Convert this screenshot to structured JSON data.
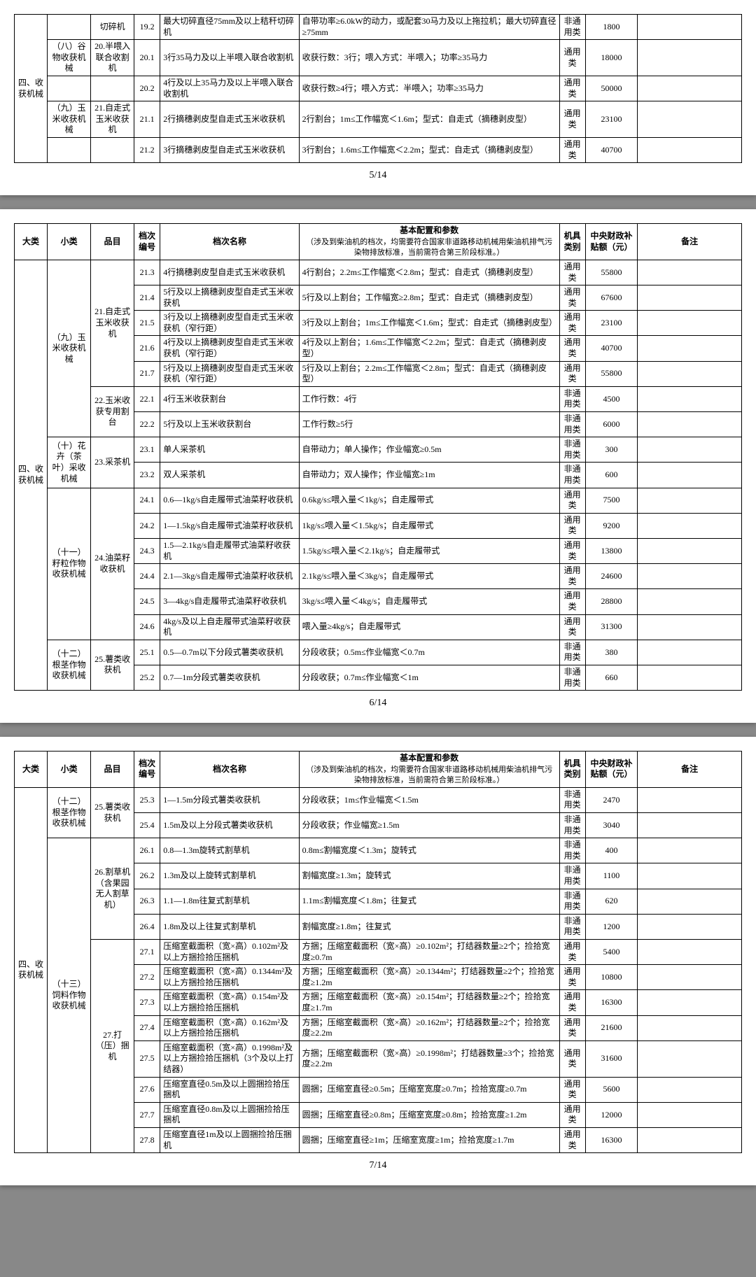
{
  "headers": {
    "dalei": "大类",
    "xiaolei": "小类",
    "pinmu": "品目",
    "danghao": "档次编号",
    "dangming": "档次名称",
    "canshu_title": "基本配置和参数",
    "canshu_sub": "（涉及到柴油机的档次，均需要符合国家非道路移动机械用柴油机排气污染物排放标准，当前需符合第三阶段标准。）",
    "leibie": "机具类别",
    "butie": "中央财政补贴额（元）",
    "beizhu": "备注"
  },
  "page5": {
    "num": "5/14",
    "dalei": "四、收获机械",
    "rows": [
      {
        "xl": "",
        "pm": "切碎机",
        "dh": "19.2",
        "dm": "最大切碎直径75mm及以上秸秆切碎机",
        "cs": "自带功率≥6.0kW的动力，或配套30马力及以上拖拉机；最大切碎直径≥75mm",
        "lb": "非通用类",
        "bt": "1800",
        "bz": ""
      },
      {
        "xl": "（八）谷物收获机械",
        "pm": "20.半喂入联合收割机",
        "dh": "20.1",
        "dm": "3行35马力及以上半喂入联合收割机",
        "cs": "收获行数：3行；喂入方式：半喂入；功率≥35马力",
        "lb": "通用类",
        "bt": "18000",
        "bz": ""
      },
      {
        "xl": "",
        "pm": "",
        "dh": "20.2",
        "dm": "4行及以上35马力及以上半喂入联合收割机",
        "cs": "收获行数≥4行；喂入方式：半喂入；功率≥35马力",
        "lb": "通用类",
        "bt": "50000",
        "bz": ""
      },
      {
        "xl": "（九）玉米收获机械",
        "pm": "21.自走式玉米收获机",
        "dh": "21.1",
        "dm": "2行摘穗剥皮型自走式玉米收获机",
        "cs": "2行割台；1m≤工作幅宽＜1.6m；型式：自走式（摘穗剥皮型）",
        "lb": "通用类",
        "bt": "23100",
        "bz": ""
      },
      {
        "xl": "",
        "pm": "",
        "dh": "21.2",
        "dm": "3行摘穗剥皮型自走式玉米收获机",
        "cs": "3行割台；1.6m≤工作幅宽＜2.2m；型式：自走式（摘穗剥皮型）",
        "lb": "通用类",
        "bt": "40700",
        "bz": ""
      }
    ]
  },
  "page6": {
    "num": "6/14",
    "dalei": "四、收获机械",
    "groups": [
      {
        "xl": "（九）玉米收获机械",
        "items": [
          {
            "pm": "21.自走式玉米收获机",
            "rows": [
              {
                "dh": "21.3",
                "dm": "4行摘穗剥皮型自走式玉米收获机",
                "cs": "4行割台；2.2m≤工作幅宽＜2.8m；型式：自走式（摘穗剥皮型）",
                "lb": "通用类",
                "bt": "55800"
              },
              {
                "dh": "21.4",
                "dm": "5行及以上摘穗剥皮型自走式玉米收获机",
                "cs": "5行及以上割台；工作幅宽≥2.8m；型式：自走式（摘穗剥皮型）",
                "lb": "通用类",
                "bt": "67600"
              },
              {
                "dh": "21.5",
                "dm": "3行及以上摘穗剥皮型自走式玉米收获机（窄行距）",
                "cs": "3行及以上割台；1m≤工作幅宽＜1.6m；型式：自走式（摘穗剥皮型）",
                "lb": "通用类",
                "bt": "23100"
              },
              {
                "dh": "21.6",
                "dm": "4行及以上摘穗剥皮型自走式玉米收获机（窄行距）",
                "cs": "4行及以上割台；1.6m≤工作幅宽＜2.2m；型式：自走式（摘穗剥皮型）",
                "lb": "通用类",
                "bt": "40700"
              },
              {
                "dh": "21.7",
                "dm": "5行及以上摘穗剥皮型自走式玉米收获机（窄行距）",
                "cs": "5行及以上割台；2.2m≤工作幅宽＜2.8m；型式：自走式（摘穗剥皮型）",
                "lb": "通用类",
                "bt": "55800"
              }
            ]
          },
          {
            "pm": "22.玉米收获专用割台",
            "rows": [
              {
                "dh": "22.1",
                "dm": "4行玉米收获割台",
                "cs": "工作行数：4行",
                "lb": "非通用类",
                "bt": "4500"
              },
              {
                "dh": "22.2",
                "dm": "5行及以上玉米收获割台",
                "cs": "工作行数≥5行",
                "lb": "非通用类",
                "bt": "6000"
              }
            ]
          }
        ]
      },
      {
        "xl": "（十）花卉（茶叶）采收机械",
        "items": [
          {
            "pm": "23.采茶机",
            "rows": [
              {
                "dh": "23.1",
                "dm": "单人采茶机",
                "cs": "自带动力；单人操作；作业幅宽≥0.5m",
                "lb": "非通用类",
                "bt": "300"
              },
              {
                "dh": "23.2",
                "dm": "双人采茶机",
                "cs": "自带动力；双人操作；作业幅宽≥1m",
                "lb": "非通用类",
                "bt": "600"
              }
            ]
          }
        ]
      },
      {
        "xl": "（十一）籽粒作物收获机械",
        "items": [
          {
            "pm": "24.油菜籽收获机",
            "rows": [
              {
                "dh": "24.1",
                "dm": "0.6—1kg/s自走履带式油菜籽收获机",
                "cs": "0.6kg/s≤喂入量＜1kg/s；自走履带式",
                "lb": "通用类",
                "bt": "7500"
              },
              {
                "dh": "24.2",
                "dm": "1—1.5kg/s自走履带式油菜籽收获机",
                "cs": "1kg/s≤喂入量＜1.5kg/s；自走履带式",
                "lb": "通用类",
                "bt": "9200"
              },
              {
                "dh": "24.3",
                "dm": "1.5—2.1kg/s自走履带式油菜籽收获机",
                "cs": "1.5kg/s≤喂入量＜2.1kg/s；自走履带式",
                "lb": "通用类",
                "bt": "13800"
              },
              {
                "dh": "24.4",
                "dm": "2.1—3kg/s自走履带式油菜籽收获机",
                "cs": "2.1kg/s≤喂入量＜3kg/s；自走履带式",
                "lb": "通用类",
                "bt": "24600"
              },
              {
                "dh": "24.5",
                "dm": "3—4kg/s自走履带式油菜籽收获机",
                "cs": "3kg/s≤喂入量＜4kg/s；自走履带式",
                "lb": "通用类",
                "bt": "28800"
              },
              {
                "dh": "24.6",
                "dm": "4kg/s及以上自走履带式油菜籽收获机",
                "cs": "喂入量≥4kg/s；自走履带式",
                "lb": "通用类",
                "bt": "31300"
              }
            ]
          }
        ]
      },
      {
        "xl": "（十二）根茎作物收获机械",
        "items": [
          {
            "pm": "25.薯类收获机",
            "rows": [
              {
                "dh": "25.1",
                "dm": "0.5—0.7m以下分段式薯类收获机",
                "cs": "分段收获；0.5m≤作业幅宽＜0.7m",
                "lb": "非通用类",
                "bt": "380"
              },
              {
                "dh": "25.2",
                "dm": "0.7—1m分段式薯类收获机",
                "cs": "分段收获；0.7m≤作业幅宽＜1m",
                "lb": "非通用类",
                "bt": "660"
              }
            ]
          }
        ]
      }
    ]
  },
  "page7": {
    "num": "7/14",
    "dalei": "四、收获机械",
    "groups": [
      {
        "xl": "（十二）根茎作物收获机械",
        "items": [
          {
            "pm": "25.薯类收获机",
            "rows": [
              {
                "dh": "25.3",
                "dm": "1—1.5m分段式薯类收获机",
                "cs": "分段收获；1m≤作业幅宽＜1.5m",
                "lb": "非通用类",
                "bt": "2470"
              },
              {
                "dh": "25.4",
                "dm": "1.5m及以上分段式薯类收获机",
                "cs": "分段收获；作业幅宽≥1.5m",
                "lb": "非通用类",
                "bt": "3040"
              }
            ]
          }
        ]
      },
      {
        "xl": "（十三）饲料作物收获机械",
        "items": [
          {
            "pm": "26.割草机（含果园无人割草机）",
            "rows": [
              {
                "dh": "26.1",
                "dm": "0.8—1.3m旋转式割草机",
                "cs": "0.8m≤割幅宽度＜1.3m；旋转式",
                "lb": "非通用类",
                "bt": "400"
              },
              {
                "dh": "26.2",
                "dm": "1.3m及以上旋转式割草机",
                "cs": "割幅宽度≥1.3m；旋转式",
                "lb": "非通用类",
                "bt": "1100"
              },
              {
                "dh": "26.3",
                "dm": "1.1—1.8m往复式割草机",
                "cs": "1.1m≤割幅宽度＜1.8m；往复式",
                "lb": "非通用类",
                "bt": "620"
              },
              {
                "dh": "26.4",
                "dm": "1.8m及以上往复式割草机",
                "cs": "割幅宽度≥1.8m；往复式",
                "lb": "非通用类",
                "bt": "1200"
              }
            ]
          },
          {
            "pm": "27.打（压）捆机",
            "rows": [
              {
                "dh": "27.1",
                "dm": "压缩室截面积（宽×高）0.102m²及以上方捆捡拾压捆机",
                "cs": "方捆；压缩室截面积（宽×高）≥0.102m²；打结器数量≥2个；捡拾宽度≥0.7m",
                "lb": "通用类",
                "bt": "5400"
              },
              {
                "dh": "27.2",
                "dm": "压缩室截面积（宽×高）0.1344m²及以上方捆捡拾压捆机",
                "cs": "方捆；压缩室截面积（宽×高）≥0.1344m²；打结器数量≥2个；捡拾宽度≥1.2m",
                "lb": "通用类",
                "bt": "10800"
              },
              {
                "dh": "27.3",
                "dm": "压缩室截面积（宽×高）0.154m²及以上方捆捡拾压捆机",
                "cs": "方捆；压缩室截面积（宽×高）≥0.154m²；打结器数量≥2个；捡拾宽度≥1.7m",
                "lb": "通用类",
                "bt": "16300"
              },
              {
                "dh": "27.4",
                "dm": "压缩室截面积（宽×高）0.162m²及以上方捆捡拾压捆机",
                "cs": "方捆；压缩室截面积（宽×高）≥0.162m²；打结器数量≥2个；捡拾宽度≥2.2m",
                "lb": "通用类",
                "bt": "21600"
              },
              {
                "dh": "27.5",
                "dm": "压缩室截面积（宽×高）0.1998m²及以上方捆捡拾压捆机（3个及以上打结器）",
                "cs": "方捆；压缩室截面积（宽×高）≥0.1998m²；打结器数量≥3个；捡拾宽度≥2.2m",
                "lb": "通用类",
                "bt": "31600"
              },
              {
                "dh": "27.6",
                "dm": "压缩室直径0.5m及以上圆捆捡拾压捆机",
                "cs": "圆捆；压缩室直径≥0.5m；压缩室宽度≥0.7m；捡拾宽度≥0.7m",
                "lb": "通用类",
                "bt": "5600"
              },
              {
                "dh": "27.7",
                "dm": "压缩室直径0.8m及以上圆捆捡拾压捆机",
                "cs": "圆捆；压缩室直径≥0.8m；压缩室宽度≥0.8m；捡拾宽度≥1.2m",
                "lb": "通用类",
                "bt": "12000"
              },
              {
                "dh": "27.8",
                "dm": "压缩室直径1m及以上圆捆捡拾压捆机",
                "cs": "圆捆；压缩室直径≥1m；压缩室宽度≥1m；捡拾宽度≥1.7m",
                "lb": "通用类",
                "bt": "16300"
              }
            ]
          }
        ]
      }
    ]
  }
}
